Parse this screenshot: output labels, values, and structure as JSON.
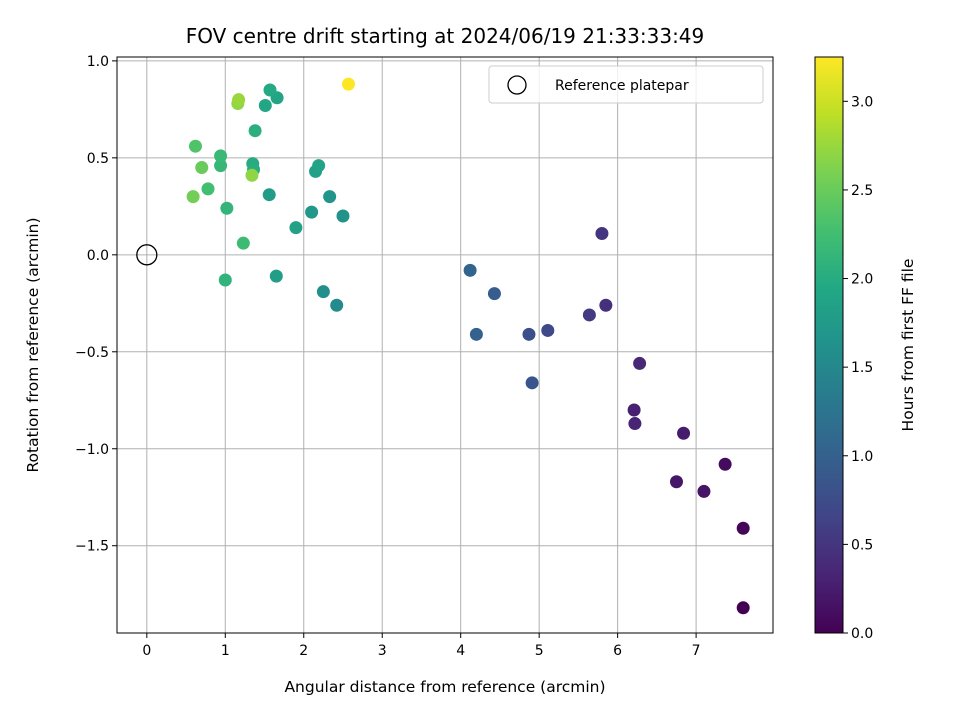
{
  "chart_data": {
    "type": "scatter",
    "title": "FOV centre drift starting at 2024/06/19 21:33:33:49",
    "xlabel": "Angular distance from reference (arcmin)",
    "ylabel": "Rotation from reference (arcmin)",
    "xlim": [
      -0.38,
      7.98
    ],
    "ylim": [
      -1.95,
      1.02
    ],
    "xticks": [
      0,
      1,
      2,
      3,
      4,
      5,
      6,
      7
    ],
    "yticks": [
      -1.5,
      -1.0,
      -0.5,
      0.0,
      0.5,
      1.0
    ],
    "xtick_labels": [
      "0",
      "1",
      "2",
      "3",
      "4",
      "5",
      "6",
      "7"
    ],
    "ytick_labels": [
      "−1.5",
      "−1.0",
      "−0.5",
      "0.0",
      "0.5",
      "1.0"
    ],
    "grid": true,
    "legend": {
      "placement": "top-right",
      "entries": [
        "Reference platepar"
      ]
    },
    "reference_point": {
      "x": 0.0,
      "y": 0.0
    },
    "colorbar": {
      "label": "Hours from first FF file",
      "colormap": "viridis",
      "range": [
        0.0,
        3.25
      ],
      "ticks": [
        0.0,
        0.5,
        1.0,
        1.5,
        2.0,
        2.5,
        3.0
      ],
      "tick_labels": [
        "0.0",
        "0.5",
        "1.0",
        "1.5",
        "2.0",
        "2.5",
        "3.0"
      ]
    },
    "points": [
      {
        "x": 7.6,
        "y": -1.82,
        "c": 0.0
      },
      {
        "x": 7.6,
        "y": -1.41,
        "c": 0.05
      },
      {
        "x": 7.37,
        "y": -1.08,
        "c": 0.1
      },
      {
        "x": 7.1,
        "y": -1.22,
        "c": 0.18
      },
      {
        "x": 6.75,
        "y": -1.17,
        "c": 0.2
      },
      {
        "x": 6.84,
        "y": -0.92,
        "c": 0.25
      },
      {
        "x": 6.21,
        "y": -0.8,
        "c": 0.3
      },
      {
        "x": 6.22,
        "y": -0.87,
        "c": 0.33
      },
      {
        "x": 6.28,
        "y": -0.56,
        "c": 0.38
      },
      {
        "x": 5.85,
        "y": -0.26,
        "c": 0.45
      },
      {
        "x": 5.8,
        "y": 0.11,
        "c": 0.5
      },
      {
        "x": 5.64,
        "y": -0.31,
        "c": 0.55
      },
      {
        "x": 5.11,
        "y": -0.39,
        "c": 0.7
      },
      {
        "x": 4.87,
        "y": -0.41,
        "c": 0.8
      },
      {
        "x": 4.91,
        "y": -0.66,
        "c": 0.85
      },
      {
        "x": 4.43,
        "y": -0.2,
        "c": 0.95
      },
      {
        "x": 4.2,
        "y": -0.41,
        "c": 1.0
      },
      {
        "x": 4.12,
        "y": -0.08,
        "c": 1.05
      },
      {
        "x": 2.42,
        "y": -0.26,
        "c": 1.55
      },
      {
        "x": 2.25,
        "y": -0.19,
        "c": 1.6
      },
      {
        "x": 2.5,
        "y": 0.2,
        "c": 1.65
      },
      {
        "x": 2.33,
        "y": 0.3,
        "c": 1.68
      },
      {
        "x": 2.1,
        "y": 0.22,
        "c": 1.72
      },
      {
        "x": 1.9,
        "y": 0.14,
        "c": 1.85
      },
      {
        "x": 1.65,
        "y": -0.11,
        "c": 1.8
      },
      {
        "x": 1.56,
        "y": 0.31,
        "c": 1.78
      },
      {
        "x": 2.15,
        "y": 0.43,
        "c": 1.82
      },
      {
        "x": 2.19,
        "y": 0.46,
        "c": 1.86
      },
      {
        "x": 1.66,
        "y": 0.81,
        "c": 1.9
      },
      {
        "x": 1.51,
        "y": 0.77,
        "c": 1.92
      },
      {
        "x": 1.57,
        "y": 0.85,
        "c": 1.96
      },
      {
        "x": 1.35,
        "y": 0.47,
        "c": 2.0
      },
      {
        "x": 1.36,
        "y": 0.44,
        "c": 2.02
      },
      {
        "x": 1.38,
        "y": 0.64,
        "c": 2.05
      },
      {
        "x": 1.0,
        "y": -0.13,
        "c": 2.1
      },
      {
        "x": 1.02,
        "y": 0.24,
        "c": 2.12
      },
      {
        "x": 0.94,
        "y": 0.46,
        "c": 2.15
      },
      {
        "x": 0.94,
        "y": 0.51,
        "c": 2.18
      },
      {
        "x": 1.23,
        "y": 0.06,
        "c": 2.22
      },
      {
        "x": 0.78,
        "y": 0.34,
        "c": 2.26
      },
      {
        "x": 0.62,
        "y": 0.56,
        "c": 2.35
      },
      {
        "x": 0.7,
        "y": 0.45,
        "c": 2.5
      },
      {
        "x": 0.59,
        "y": 0.3,
        "c": 2.55
      },
      {
        "x": 1.34,
        "y": 0.41,
        "c": 2.7
      },
      {
        "x": 1.16,
        "y": 0.78,
        "c": 2.7
      },
      {
        "x": 1.17,
        "y": 0.8,
        "c": 2.75
      },
      {
        "x": 2.57,
        "y": 0.88,
        "c": 3.25
      }
    ]
  }
}
